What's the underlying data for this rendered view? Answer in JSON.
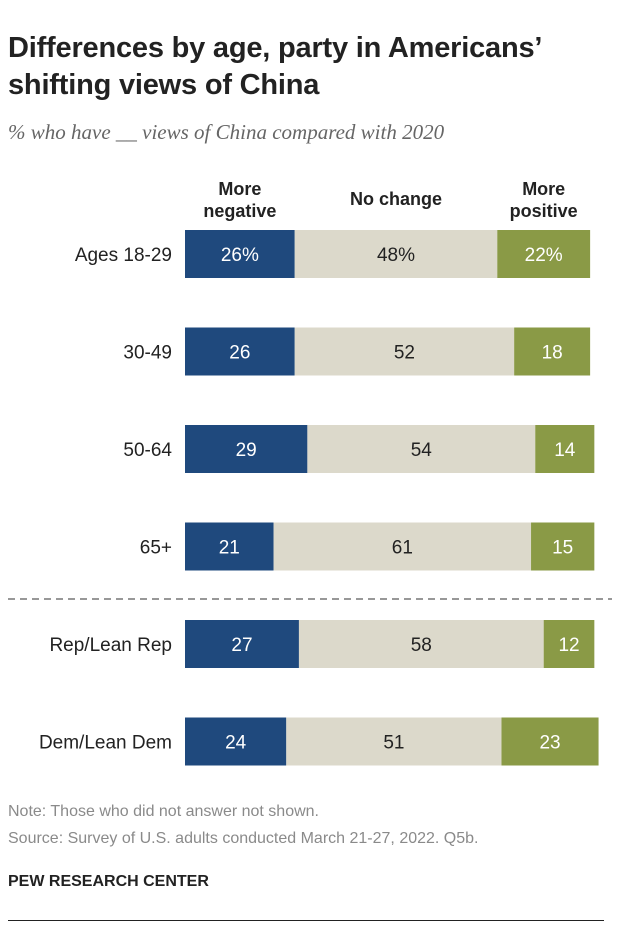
{
  "header": {
    "title": "Differences by age, party in Americans’ shifting views of China",
    "subtitle": "% who have __ views of China compared with 2020"
  },
  "colors": {
    "more_negative": "#1f497d",
    "no_change": "#dcd9cb",
    "more_positive": "#8a9a46"
  },
  "chart_data": {
    "type": "bar",
    "orientation": "horizontal",
    "stacked": true,
    "column_headers": [
      "More negative",
      "No change",
      "More positive"
    ],
    "categories": [
      "Ages 18-29",
      "30-49",
      "50-64",
      "65+",
      "Rep/Lean Rep",
      "Dem/Lean Dem"
    ],
    "series": [
      {
        "name": "More negative",
        "values": [
          26,
          26,
          29,
          21,
          27,
          24
        ],
        "labels": [
          "26%",
          "26",
          "29",
          "21",
          "27",
          "24"
        ]
      },
      {
        "name": "No change",
        "values": [
          48,
          52,
          54,
          61,
          58,
          51
        ],
        "labels": [
          "48%",
          "52",
          "54",
          "61",
          "58",
          "51"
        ]
      },
      {
        "name": "More positive",
        "values": [
          22,
          18,
          14,
          15,
          12,
          23
        ],
        "labels": [
          "22%",
          "18",
          "14",
          "15",
          "12",
          "23"
        ]
      }
    ],
    "group_separator_after": 3,
    "grid": false
  },
  "footer": {
    "note": "Note: Those who did not answer not shown.",
    "source": "Source: Survey of U.S. adults conducted March 21-27, 2022. Q5b.",
    "brand": "PEW RESEARCH CENTER"
  }
}
